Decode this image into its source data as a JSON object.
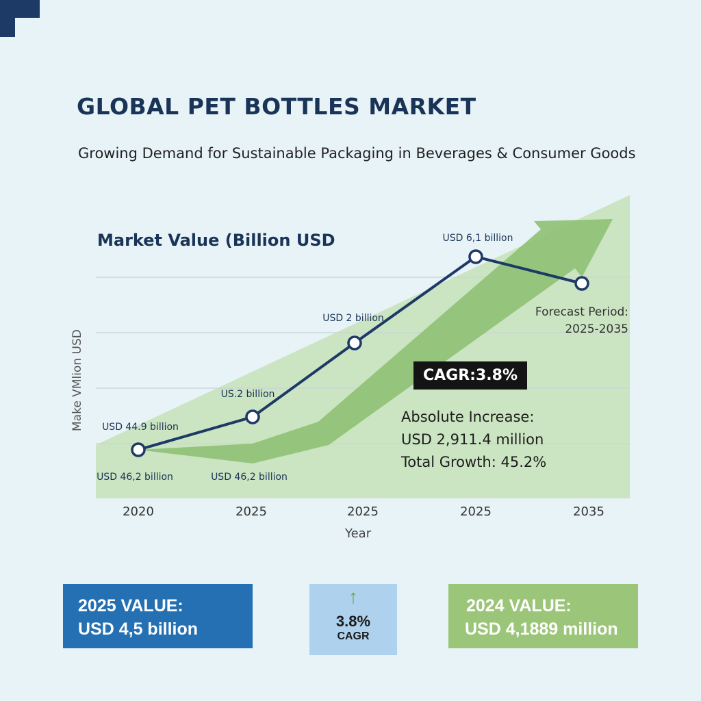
{
  "header": {
    "title": "GLOBAL PET BOTTLES MARKET",
    "subtitle": "Growing Demand for Sustainable Packaging in Beverages & Consumer Goods"
  },
  "colors": {
    "navy": "#1d3a66",
    "green_light": "#c5e0b8",
    "green_arrow": "#8fc174",
    "blue_card": "#2470b3",
    "light_blue_card": "#aed2ee",
    "green_card": "#9bc579"
  },
  "chart_data": {
    "type": "line",
    "title": "Market Value (Billion USD",
    "xlabel": "Year",
    "ylabel": "Make VMlion USD",
    "x_tick_labels": [
      "2020",
      "2025",
      "2025",
      "2025",
      "2035"
    ],
    "grid": true,
    "point_labels": [
      "USD 44.9 billion",
      "US.2 billion",
      "USD 2 billion",
      "USD 6,1 billion",
      ""
    ],
    "lower_labels": [
      "USD 46,2 billion",
      "USD 46,2 billion"
    ],
    "annotations": {
      "forecast_line1": "Forecast Period:",
      "forecast_line2": "2025-2035",
      "cagr": "CAGR:3.8%",
      "stat1": "Absolute Increase:",
      "stat2": "USD 2,911.4 million",
      "stat3": "Total Growth: 45.2%"
    }
  },
  "cards": {
    "value_2025": {
      "line1": "2025 VALUE:",
      "line2": "USD 4,5 billion"
    },
    "cagr": {
      "icon": "arrow-up-icon",
      "arrow": "↑",
      "value": "3.8%",
      "label": "CAGR"
    },
    "value_2024": {
      "line1": "2024 VALUE:",
      "line2": "USD 4,1889 million"
    }
  }
}
